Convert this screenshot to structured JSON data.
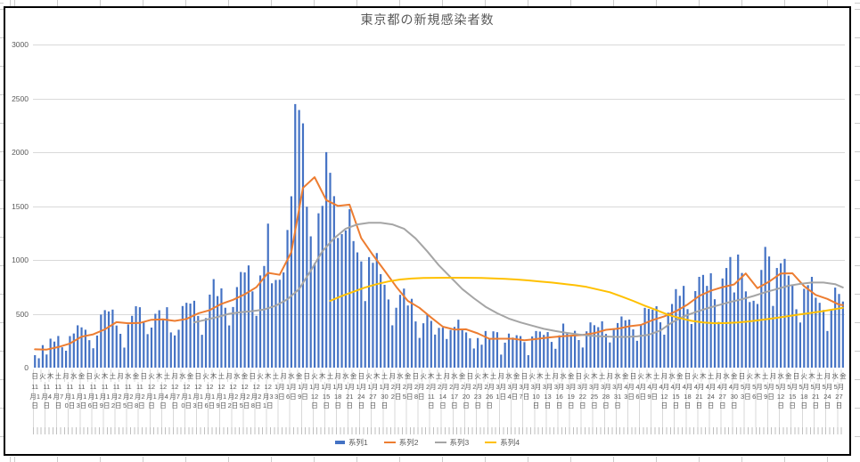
{
  "title": "東京都の新規感染者数",
  "colors": {
    "series1": "#4472C4",
    "series2": "#ED7D31",
    "series3": "#A5A5A5",
    "series4": "#FFC000",
    "gridline": "#D9D9D9",
    "axis_text": "#595959",
    "chart_border": "#000000"
  },
  "legend": [
    {
      "label": "系列1",
      "color": "#4472C4",
      "type": "bar"
    },
    {
      "label": "系列2",
      "color": "#ED7D31",
      "type": "line"
    },
    {
      "label": "系列3",
      "color": "#A5A5A5",
      "type": "line"
    },
    {
      "label": "系列4",
      "color": "#FFC000",
      "type": "line"
    }
  ],
  "axis": {
    "y_ticks": [
      3000,
      2500,
      2000,
      1500,
      1000,
      500,
      0
    ],
    "dow_pattern": "日火木土月水金",
    "dow_label_interval_days": 2,
    "date_label_interval_days": 3,
    "date_labels": [
      "11月1日",
      "11月4日",
      "11月7日",
      "11月10日",
      "11月13日",
      "11月16日",
      "11月19日",
      "11月22日",
      "11月25日",
      "11月28日",
      "12月1日",
      "12月4日",
      "12月7日",
      "12月10日",
      "12月13日",
      "12月16日",
      "12月19日",
      "12月22日",
      "12月25日",
      "12月28日",
      "12月31日",
      "1月3日",
      "1月6日",
      "1月9日",
      "1月12日",
      "1月15日",
      "1月18日",
      "1月21日",
      "1月24日",
      "1月27日",
      "1月30日",
      "2月2日",
      "2月5日",
      "2月8日",
      "2月11日",
      "2月14日",
      "2月17日",
      "2月20日",
      "2月23日",
      "2月26日",
      "3月1日",
      "3月4日",
      "3月7日",
      "3月10日",
      "3月13日",
      "3月16日",
      "3月19日",
      "3月22日",
      "3月25日",
      "3月28日",
      "3月31日",
      "4月3日",
      "4月6日",
      "4月9日",
      "4月12日",
      "4月15日",
      "4月18日",
      "4月21日",
      "4月24日",
      "4月27日",
      "4月30日",
      "5月3日",
      "5月6日",
      "5月9日",
      "5月12日",
      "5月15日",
      "5月18日",
      "5月21日",
      "5月24日",
      "5月27日"
    ]
  },
  "chart_data": {
    "type": "bar",
    "title": "東京都の新規感染者数",
    "xlabel": "",
    "ylabel": "",
    "ylim": [
      0,
      3000
    ],
    "grid": "horizontal",
    "legend_position": "bottom",
    "days": 209,
    "x_range_labels": [
      "11月1日",
      "5月27日"
    ],
    "series": [
      {
        "name": "系列1",
        "type": "bar",
        "color": "#4472C4",
        "values": [
          116,
          87,
          209,
          122,
          269,
          242,
          294,
          189,
          157,
          293,
          317,
          393,
          374,
          352,
          255,
          180,
          298,
          493,
          534,
          522,
          539,
          391,
          314,
          186,
          401,
          481,
          570,
          561,
          418,
          311,
          372,
          500,
          533,
          449,
          561,
          327,
          299,
          352,
          572,
          602,
          595,
          621,
          480,
          305,
          460,
          678,
          822,
          664,
          736,
          556,
          392,
          563,
          748,
          888,
          884,
          949,
          708,
          481,
          856,
          944,
          1337,
          783,
          814,
          816,
          884,
          1278,
          1591,
          2447,
          2392,
          2268,
          1494,
          1219,
          970,
          1433,
          1502,
          2001,
          1809,
          1592,
          1204,
          1240,
          1274,
          1471,
          1175,
          1070,
          986,
          618,
          1026,
          973,
          1064,
          868,
          769,
          633,
          393,
          556,
          676,
          734,
          577,
          639,
          429,
          276,
          412,
          491,
          434,
          307,
          369,
          371,
          266,
          350,
          378,
          445,
          353,
          327,
          272,
          178,
          275,
          213,
          340,
          270,
          337,
          329,
          121,
          232,
          316,
          279,
          301,
          293,
          237,
          116,
          290,
          340,
          335,
          304,
          330,
          239,
          175,
          300,
          409,
          323,
          303,
          342,
          256,
          187,
          337,
          420,
          394,
          376,
          430,
          313,
          234,
          364,
          414,
          475,
          440,
          446,
          355,
          249,
          399,
          555,
          545,
          537,
          570,
          421,
          306,
          510,
          591,
          729,
          667,
          759,
          543,
          405,
          711,
          843,
          861,
          759,
          876,
          635,
          425,
          828,
          925,
          1027,
          698,
          1050,
          879,
          708,
          609,
          621,
          591,
          907,
          1121,
          1032,
          573,
          925,
          969,
          1010,
          854,
          772,
          542,
          419,
          732,
          766,
          843,
          649,
          602,
          535,
          340,
          542,
          743,
          684,
          614
        ]
      },
      {
        "name": "系列2",
        "type": "line",
        "color": "#ED7D31",
        "points": [
          [
            0,
            170
          ],
          [
            3,
            168
          ],
          [
            6,
            191
          ],
          [
            9,
            224
          ],
          [
            12,
            288
          ],
          [
            15,
            309
          ],
          [
            18,
            355
          ],
          [
            21,
            422
          ],
          [
            24,
            412
          ],
          [
            27,
            415
          ],
          [
            30,
            445
          ],
          [
            33,
            449
          ],
          [
            36,
            434
          ],
          [
            39,
            452
          ],
          [
            42,
            503
          ],
          [
            45,
            534
          ],
          [
            48,
            592
          ],
          [
            51,
            630
          ],
          [
            54,
            681
          ],
          [
            57,
            746
          ],
          [
            60,
            880
          ],
          [
            63,
            862
          ],
          [
            66,
            1072
          ],
          [
            69,
            1668
          ],
          [
            72,
            1769
          ],
          [
            75,
            1555
          ],
          [
            78,
            1502
          ],
          [
            81,
            1513
          ],
          [
            84,
            1203
          ],
          [
            87,
            1046
          ],
          [
            90,
            901
          ],
          [
            93,
            751
          ],
          [
            96,
            620
          ],
          [
            99,
            555
          ],
          [
            102,
            465
          ],
          [
            105,
            380
          ],
          [
            108,
            354
          ],
          [
            111,
            356
          ],
          [
            114,
            318
          ],
          [
            117,
            268
          ],
          [
            120,
            269
          ],
          [
            123,
            269
          ],
          [
            126,
            254
          ],
          [
            129,
            265
          ],
          [
            132,
            279
          ],
          [
            135,
            289
          ],
          [
            138,
            297
          ],
          [
            141,
            303
          ],
          [
            144,
            320
          ],
          [
            147,
            351
          ],
          [
            150,
            361
          ],
          [
            153,
            384
          ],
          [
            156,
            397
          ],
          [
            159,
            441
          ],
          [
            162,
            476
          ],
          [
            165,
            523
          ],
          [
            168,
            586
          ],
          [
            171,
            665
          ],
          [
            174,
            714
          ],
          [
            177,
            747
          ],
          [
            180,
            773
          ],
          [
            183,
            874
          ],
          [
            186,
            737
          ],
          [
            189,
            798
          ],
          [
            192,
            874
          ],
          [
            195,
            876
          ],
          [
            198,
            757
          ],
          [
            201,
            675
          ],
          [
            204,
            638
          ],
          [
            207,
            585
          ],
          [
            208,
            580
          ]
        ]
      },
      {
        "name": "系列3",
        "type": "line",
        "color": "#A5A5A5",
        "points": [
          [
            41,
            420
          ],
          [
            44,
            445
          ],
          [
            47,
            470
          ],
          [
            50,
            500
          ],
          [
            53,
            515
          ],
          [
            56,
            525
          ],
          [
            59,
            540
          ],
          [
            62,
            575
          ],
          [
            65,
            635
          ],
          [
            68,
            730
          ],
          [
            71,
            900
          ],
          [
            74,
            1080
          ],
          [
            77,
            1200
          ],
          [
            80,
            1290
          ],
          [
            83,
            1330
          ],
          [
            86,
            1345
          ],
          [
            89,
            1345
          ],
          [
            92,
            1330
          ],
          [
            95,
            1290
          ],
          [
            98,
            1200
          ],
          [
            101,
            1080
          ],
          [
            104,
            950
          ],
          [
            107,
            840
          ],
          [
            110,
            730
          ],
          [
            113,
            645
          ],
          [
            116,
            565
          ],
          [
            119,
            505
          ],
          [
            122,
            455
          ],
          [
            125,
            420
          ],
          [
            128,
            390
          ],
          [
            131,
            360
          ],
          [
            134,
            340
          ],
          [
            137,
            322
          ],
          [
            140,
            308
          ],
          [
            143,
            297
          ],
          [
            146,
            290
          ],
          [
            149,
            286
          ],
          [
            152,
            285
          ],
          [
            155,
            290
          ],
          [
            158,
            305
          ],
          [
            161,
            345
          ],
          [
            164,
            420
          ],
          [
            167,
            475
          ],
          [
            170,
            515
          ],
          [
            173,
            550
          ],
          [
            176,
            580
          ],
          [
            179,
            610
          ],
          [
            182,
            635
          ],
          [
            185,
            665
          ],
          [
            188,
            700
          ],
          [
            191,
            730
          ],
          [
            194,
            760
          ],
          [
            197,
            778
          ],
          [
            200,
            790
          ],
          [
            203,
            790
          ],
          [
            206,
            775
          ],
          [
            208,
            745
          ]
        ]
      },
      {
        "name": "系列4",
        "type": "line",
        "color": "#FFC000",
        "points": [
          [
            76,
            620
          ],
          [
            79,
            665
          ],
          [
            82,
            705
          ],
          [
            85,
            745
          ],
          [
            88,
            775
          ],
          [
            91,
            800
          ],
          [
            94,
            818
          ],
          [
            97,
            827
          ],
          [
            100,
            832
          ],
          [
            103,
            834
          ],
          [
            106,
            835
          ],
          [
            109,
            835
          ],
          [
            112,
            834
          ],
          [
            115,
            832
          ],
          [
            118,
            828
          ],
          [
            121,
            824
          ],
          [
            124,
            818
          ],
          [
            127,
            810
          ],
          [
            130,
            800
          ],
          [
            133,
            790
          ],
          [
            136,
            778
          ],
          [
            139,
            765
          ],
          [
            142,
            750
          ],
          [
            145,
            725
          ],
          [
            148,
            700
          ],
          [
            151,
            660
          ],
          [
            154,
            620
          ],
          [
            157,
            575
          ],
          [
            160,
            535
          ],
          [
            163,
            490
          ],
          [
            166,
            460
          ],
          [
            169,
            435
          ],
          [
            172,
            420
          ],
          [
            175,
            412
          ],
          [
            178,
            414
          ],
          [
            181,
            420
          ],
          [
            184,
            430
          ],
          [
            187,
            443
          ],
          [
            190,
            458
          ],
          [
            193,
            473
          ],
          [
            196,
            489
          ],
          [
            199,
            504
          ],
          [
            202,
            520
          ],
          [
            205,
            537
          ],
          [
            208,
            555
          ]
        ]
      }
    ]
  }
}
